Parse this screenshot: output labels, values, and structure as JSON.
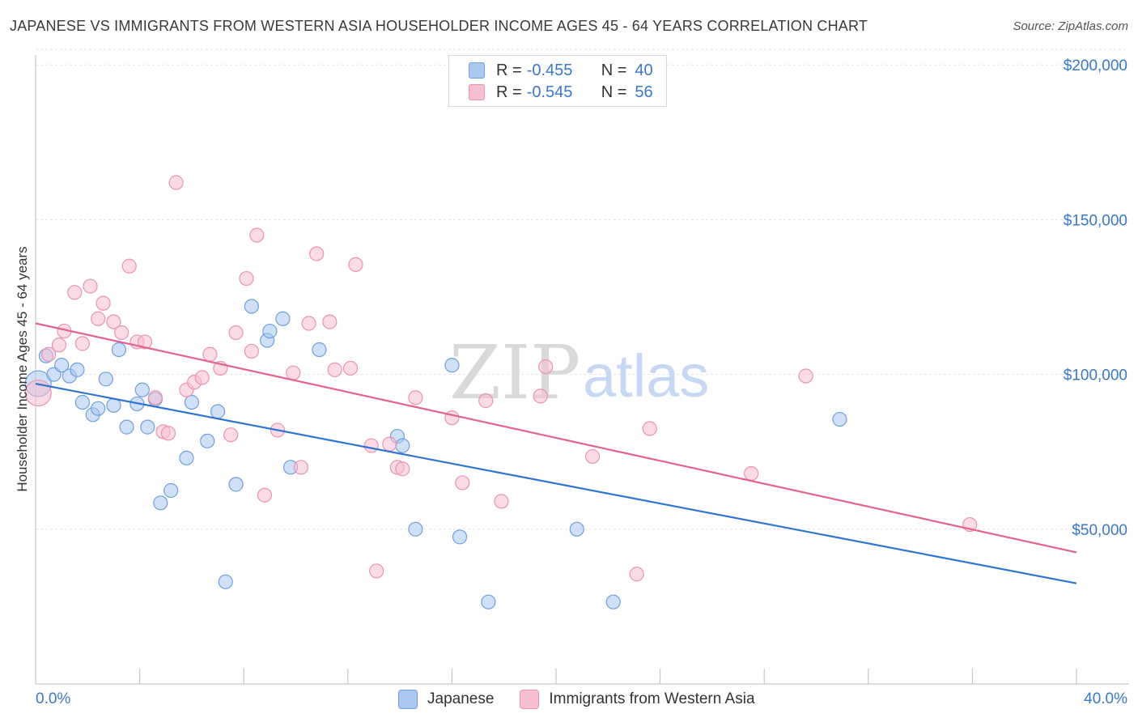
{
  "header": {
    "title": "JAPANESE VS IMMIGRANTS FROM WESTERN ASIA HOUSEHOLDER INCOME AGES 45 - 64 YEARS CORRELATION CHART",
    "source": "Source: ZipAtlas.com"
  },
  "legend": {
    "r_label": "R =",
    "n_label": "N =",
    "japanese": {
      "r": "-0.455",
      "n": "40"
    },
    "western_asia": {
      "r": "-0.545",
      "n": "56"
    }
  },
  "watermark": {
    "zip": "ZIP",
    "atlas": "atlas"
  },
  "colors": {
    "japanese_fill": "#aac8f0",
    "japanese_stroke": "#6f9fdc",
    "japanese_line": "#2f74d0",
    "western_asia_fill": "#f7c0d1",
    "western_asia_stroke": "#ea93af",
    "western_asia_line": "#e2638f",
    "axis_label": "#3a78c9"
  },
  "chart_data": {
    "type": "scatter",
    "title": "JAPANESE VS IMMIGRANTS FROM WESTERN ASIA HOUSEHOLDER INCOME AGES 45 - 64 YEARS CORRELATION CHART",
    "xlabel": "",
    "ylabel": "Householder Income Ages 45 - 64 years",
    "xlim": [
      0,
      40
    ],
    "ylim": [
      0,
      210000
    ],
    "x_tick_labels": [
      "0.0%",
      "40.0%"
    ],
    "y_ticks": [
      50000,
      100000,
      150000,
      200000
    ],
    "y_tick_labels": [
      "$50,000",
      "$100,000",
      "$150,000",
      "$200,000"
    ],
    "grid": true,
    "legend_position": "top-center",
    "series": [
      {
        "name": "Japanese",
        "r": -0.455,
        "n": 40,
        "trend": {
          "x": [
            0,
            40
          ],
          "y": [
            97000,
            32500
          ]
        },
        "points": [
          [
            0.1,
            97000
          ],
          [
            0.4,
            106000
          ],
          [
            0.7,
            100000
          ],
          [
            1.0,
            103000
          ],
          [
            1.3,
            99500
          ],
          [
            1.6,
            101500
          ],
          [
            1.8,
            91000
          ],
          [
            2.2,
            87000
          ],
          [
            2.4,
            89000
          ],
          [
            2.7,
            98500
          ],
          [
            3.0,
            90000
          ],
          [
            3.2,
            108000
          ],
          [
            3.5,
            83000
          ],
          [
            3.9,
            90500
          ],
          [
            4.1,
            95000
          ],
          [
            4.3,
            83000
          ],
          [
            4.6,
            92000
          ],
          [
            4.8,
            58500
          ],
          [
            5.2,
            62500
          ],
          [
            5.8,
            73000
          ],
          [
            6.0,
            91000
          ],
          [
            6.6,
            78500
          ],
          [
            7.0,
            88000
          ],
          [
            7.3,
            33000
          ],
          [
            7.7,
            64500
          ],
          [
            8.3,
            122000
          ],
          [
            8.9,
            111000
          ],
          [
            9.0,
            114000
          ],
          [
            9.5,
            118000
          ],
          [
            9.8,
            70000
          ],
          [
            10.9,
            108000
          ],
          [
            13.9,
            80000
          ],
          [
            14.1,
            77000
          ],
          [
            14.6,
            50000
          ],
          [
            16.0,
            103000
          ],
          [
            16.3,
            47500
          ],
          [
            17.4,
            26500
          ],
          [
            20.8,
            50000
          ],
          [
            22.2,
            26500
          ],
          [
            30.9,
            85500
          ]
        ]
      },
      {
        "name": "Immigrants from Western Asia",
        "r": -0.545,
        "n": 56,
        "trend": {
          "x": [
            0,
            40
          ],
          "y": [
            116500,
            42500
          ]
        },
        "points": [
          [
            0.1,
            94000
          ],
          [
            0.5,
            106500
          ],
          [
            0.9,
            109500
          ],
          [
            1.1,
            114000
          ],
          [
            1.5,
            126500
          ],
          [
            1.8,
            110000
          ],
          [
            2.1,
            128500
          ],
          [
            2.4,
            118000
          ],
          [
            2.6,
            123000
          ],
          [
            3.0,
            117000
          ],
          [
            3.3,
            113500
          ],
          [
            3.6,
            135000
          ],
          [
            3.9,
            110500
          ],
          [
            4.2,
            110500
          ],
          [
            4.6,
            92500
          ],
          [
            4.9,
            81500
          ],
          [
            5.1,
            81000
          ],
          [
            5.4,
            162000
          ],
          [
            5.8,
            95000
          ],
          [
            6.1,
            97500
          ],
          [
            6.4,
            99000
          ],
          [
            6.7,
            106500
          ],
          [
            7.1,
            102000
          ],
          [
            7.5,
            80500
          ],
          [
            7.7,
            113500
          ],
          [
            8.1,
            131000
          ],
          [
            8.3,
            107500
          ],
          [
            8.5,
            145000
          ],
          [
            8.8,
            61000
          ],
          [
            9.3,
            82000
          ],
          [
            9.9,
            100500
          ],
          [
            10.2,
            70000
          ],
          [
            10.5,
            116500
          ],
          [
            10.8,
            139000
          ],
          [
            11.3,
            117000
          ],
          [
            11.5,
            101500
          ],
          [
            12.1,
            102000
          ],
          [
            12.3,
            135500
          ],
          [
            12.9,
            77000
          ],
          [
            13.1,
            36500
          ],
          [
            13.6,
            77500
          ],
          [
            13.9,
            70000
          ],
          [
            14.1,
            69500
          ],
          [
            14.6,
            92500
          ],
          [
            16.0,
            86000
          ],
          [
            16.4,
            65000
          ],
          [
            17.3,
            91500
          ],
          [
            17.9,
            59000
          ],
          [
            19.4,
            93000
          ],
          [
            19.6,
            102500
          ],
          [
            21.4,
            73500
          ],
          [
            23.1,
            35500
          ],
          [
            23.6,
            82500
          ],
          [
            27.5,
            68000
          ],
          [
            29.6,
            99500
          ],
          [
            35.9,
            51500
          ]
        ]
      }
    ]
  }
}
